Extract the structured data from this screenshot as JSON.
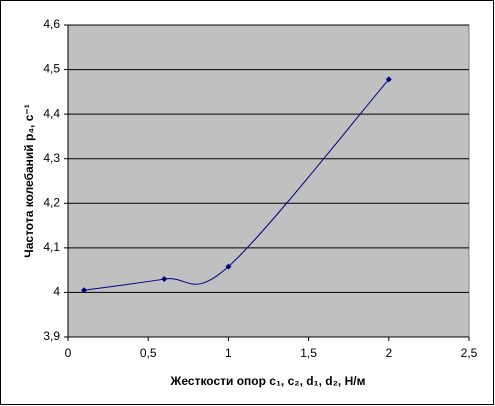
{
  "chart_data": {
    "type": "line",
    "x_label": "Жесткости опор c₁, c₂, d₁, d₂, Н/м",
    "y_label": "Частота колебаний p₄, c⁻¹",
    "series": [
      {
        "color": "#000080",
        "x": [
          0.1,
          0.6,
          1.0,
          2.0
        ],
        "values": [
          4.005,
          4.03,
          4.058,
          4.478
        ]
      }
    ],
    "xlim": [
      0,
      2.5
    ],
    "xticks": [
      0,
      {
        "value": 0.5,
        "label": "0,5"
      },
      1,
      {
        "value": 1.5,
        "label": "1,5"
      },
      2,
      {
        "value": 2.5,
        "label": "2,5"
      }
    ],
    "ylim": [
      3.9,
      4.6
    ],
    "yticks": [
      {
        "value": 3.9,
        "label": "3,9"
      },
      4,
      {
        "value": 4.1,
        "label": "4,1"
      },
      {
        "value": 4.2,
        "label": "4,2"
      },
      {
        "value": 4.3,
        "label": "4,3"
      },
      {
        "value": 4.4,
        "label": "4,4"
      },
      {
        "value": 4.5,
        "label": "4,5"
      },
      {
        "value": 4.6,
        "label": "4,6"
      }
    ],
    "grid": true,
    "smooth": true,
    "plot_background": "#c0c0c0"
  }
}
